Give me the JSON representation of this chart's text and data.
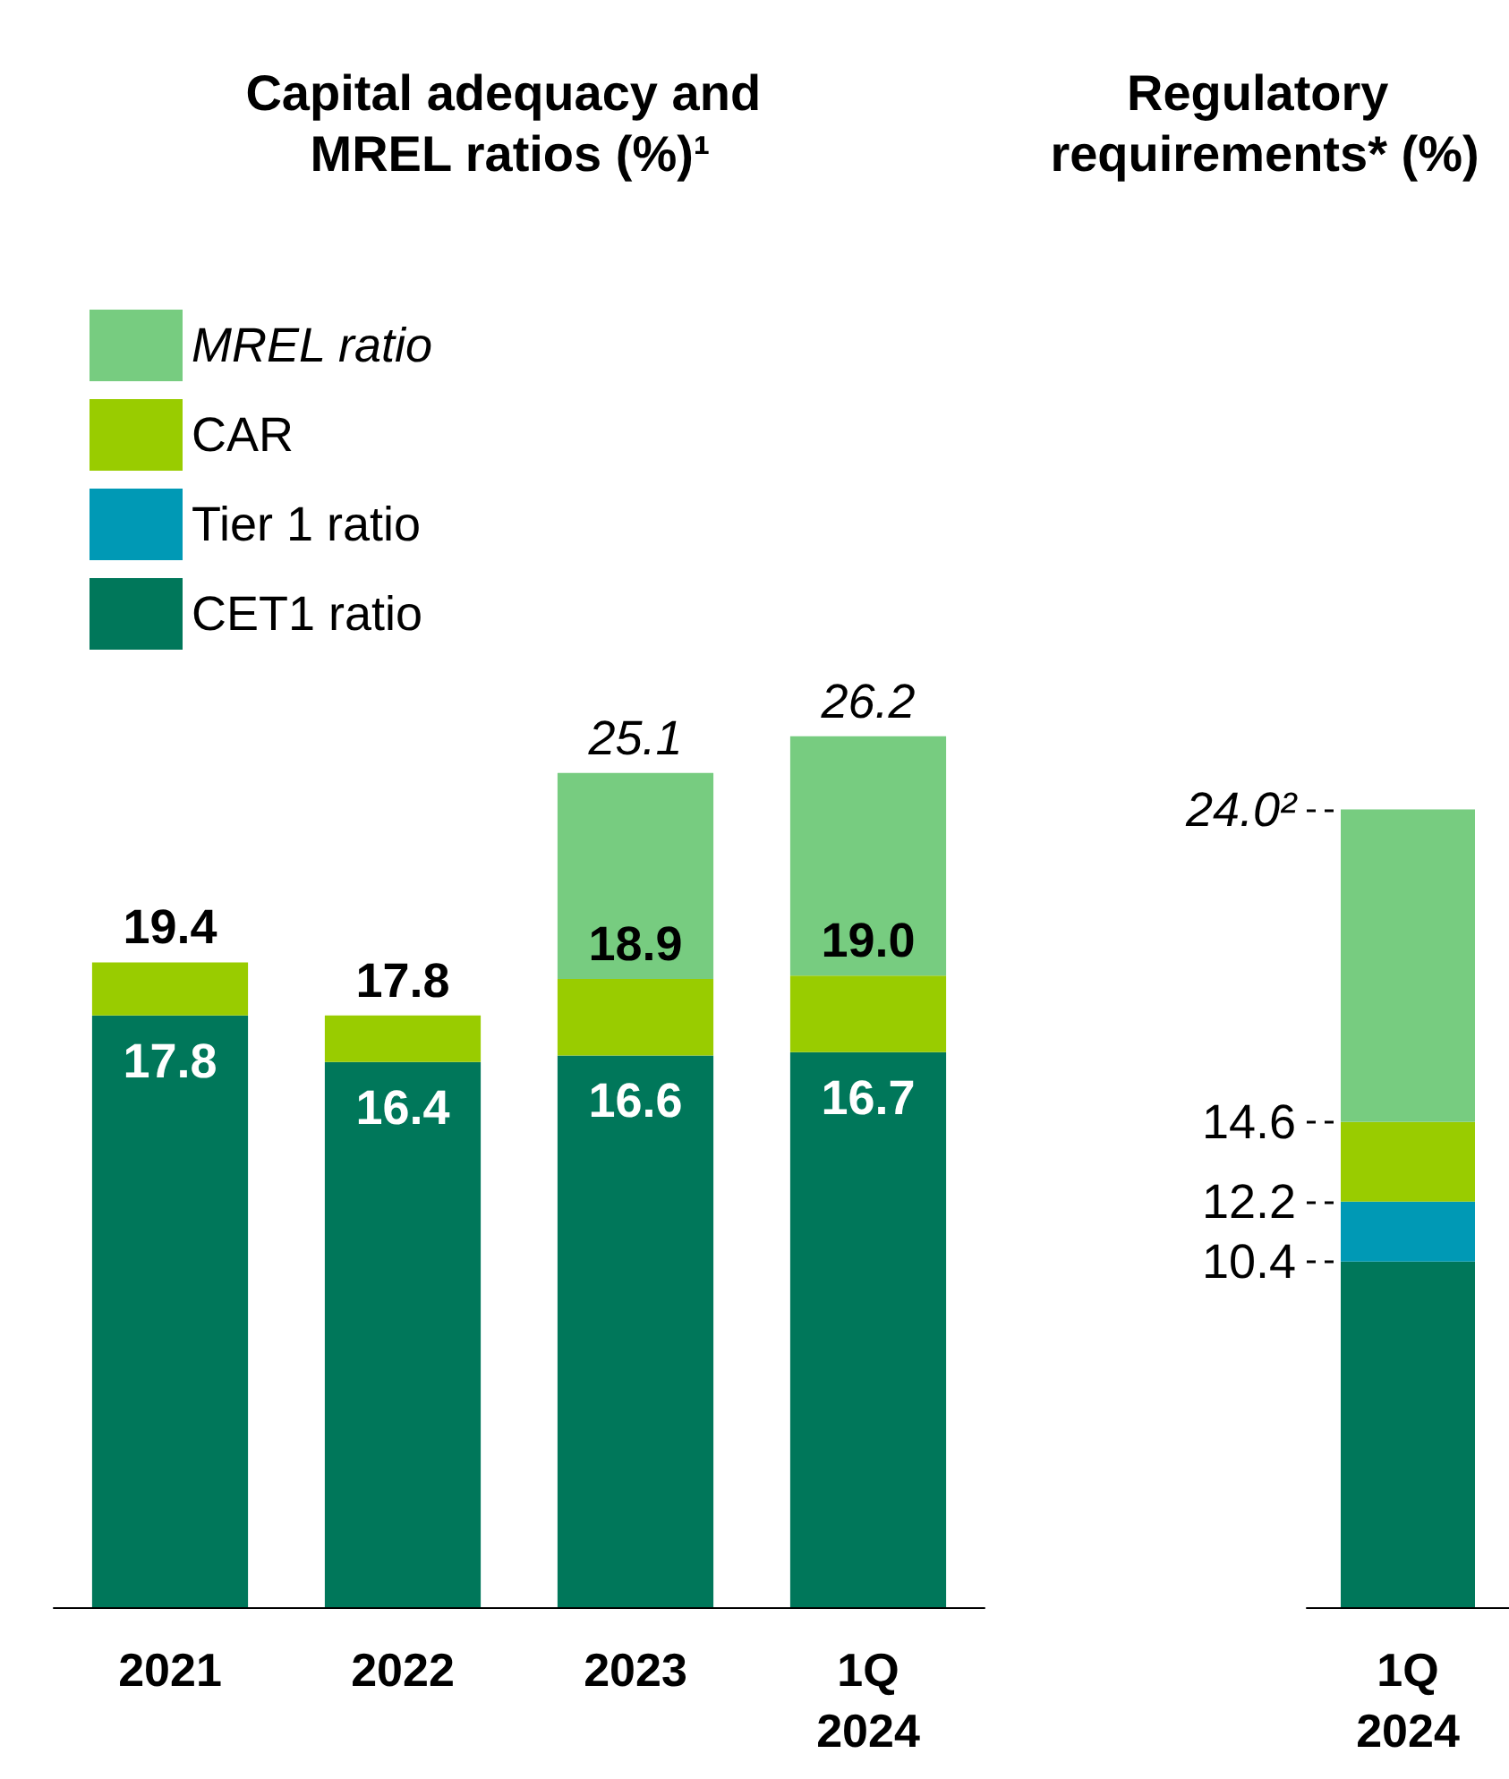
{
  "chart_data": [
    {
      "type": "bar",
      "title": "Capital adequacy and MREL ratios (%)¹",
      "categories": [
        "2021",
        "2022",
        "2023",
        "1Q\n2024"
      ],
      "stacked": true,
      "legend": "top left",
      "tick_labels": "x",
      "series": [
        {
          "name": "CET1 ratio",
          "color": "#00775a",
          "values": [
            17.8,
            16.4,
            16.6,
            16.7
          ],
          "value_labels": [
            "17.8",
            "16.4",
            "16.6",
            "16.7"
          ]
        },
        {
          "name": "Tier 1 ratio",
          "color": "#0099b5",
          "values": [
            null,
            null,
            null,
            null
          ]
        },
        {
          "name": "CAR",
          "color": "#99cc00",
          "values": [
            1.6,
            1.4,
            2.3,
            2.3
          ]
        },
        {
          "name": "MREL ratio",
          "color": "#77cc80",
          "values": [
            null,
            null,
            6.2,
            7.2
          ]
        }
      ],
      "annotations": [
        {
          "text": "19.4",
          "x": "2021",
          "y": 19.4
        },
        {
          "text": "17.8",
          "x": "2022",
          "y": 17.8
        },
        {
          "text": "18.9",
          "x": "2023",
          "y": 18.9
        },
        {
          "text": "19.0",
          "x": "1Q\n2024",
          "y": 19.0
        },
        {
          "text": "25.1",
          "x": "2023",
          "y": 25.1
        },
        {
          "text": "26.2",
          "x": "1Q\n2024",
          "y": 26.2
        }
      ]
    },
    {
      "type": "bar",
      "title": "Regulatory requirements* (%)",
      "categories": [
        "1Q\n2024"
      ],
      "stacked": true,
      "ylim": [
        0,
        24.0
      ],
      "yticks": [
        10.4,
        12.2,
        14.6,
        {
          "value": 24.0,
          "label": "24.0²"
        }
      ],
      "series": [
        {
          "color": "#00775a",
          "values": [
            10.4
          ]
        },
        {
          "color": "#0099b5",
          "values": [
            1.8
          ]
        },
        {
          "color": "#99cc00",
          "values": [
            2.4
          ]
        },
        {
          "color": "#77cc80",
          "values": [
            9.4
          ]
        }
      ]
    }
  ]
}
